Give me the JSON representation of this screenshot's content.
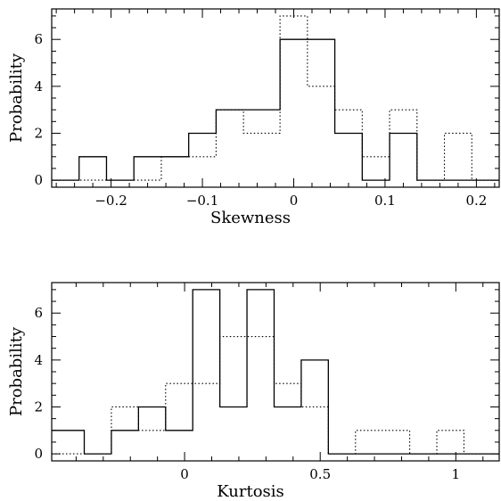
{
  "chart_data": [
    {
      "type": "histogram",
      "xlabel": "Skewness",
      "ylabel": "Probability",
      "xlim": [
        -0.265,
        0.225
      ],
      "ylim": [
        -0.3,
        7.3
      ],
      "x_tick_labels": [
        "−0.2",
        "−0.1",
        "0",
        "0.1",
        "0.2"
      ],
      "x_tick_values": [
        -0.2,
        -0.1,
        0,
        0.1,
        0.2
      ],
      "y_tick_labels": [
        "0",
        "2",
        "4",
        "6"
      ],
      "y_tick_values": [
        0,
        2,
        4,
        6
      ],
      "series": [
        {
          "style": "solid",
          "bin_edges": [
            -0.265,
            -0.235,
            -0.205,
            -0.175,
            -0.145,
            -0.115,
            -0.085,
            -0.055,
            -0.015,
            0.015,
            0.045,
            0.075,
            0.105,
            0.135,
            0.165,
            0.195,
            0.225
          ],
          "values": [
            0,
            1,
            0,
            1,
            1,
            2,
            3,
            3,
            6,
            6,
            2,
            0,
            2,
            0,
            0,
            0
          ]
        },
        {
          "style": "dotted",
          "bin_edges": [
            -0.265,
            -0.235,
            -0.205,
            -0.175,
            -0.145,
            -0.115,
            -0.085,
            -0.055,
            -0.015,
            0.015,
            0.045,
            0.075,
            0.105,
            0.135,
            0.165,
            0.195,
            0.225
          ],
          "values": [
            0,
            0,
            0,
            0,
            1,
            1,
            3,
            2,
            7,
            4,
            3,
            1,
            3,
            0,
            2,
            0
          ]
        }
      ]
    },
    {
      "type": "histogram",
      "xlabel": "Kurtosis",
      "ylabel": "Probability",
      "xlim": [
        -0.49,
        1.16
      ],
      "ylim": [
        -0.3,
        7.3
      ],
      "x_tick_labels": [
        "0",
        "0.5",
        "1"
      ],
      "x_tick_values": [
        0,
        0.5,
        1
      ],
      "y_tick_labels": [
        "0",
        "2",
        "4",
        "6"
      ],
      "y_tick_values": [
        0,
        2,
        4,
        6
      ],
      "series": [
        {
          "style": "solid",
          "bin_edges": [
            -0.49,
            -0.37,
            -0.27,
            -0.17,
            -0.07,
            0.03,
            0.13,
            0.23,
            0.33,
            0.43,
            0.53,
            0.63,
            0.73,
            0.83,
            0.93,
            1.03,
            1.16
          ],
          "values": [
            1,
            0,
            1,
            2,
            1,
            7,
            2,
            7,
            2,
            4,
            0,
            0,
            0,
            0,
            0,
            0
          ]
        },
        {
          "style": "dotted",
          "bin_edges": [
            -0.49,
            -0.37,
            -0.27,
            -0.17,
            -0.07,
            0.03,
            0.13,
            0.23,
            0.33,
            0.43,
            0.53,
            0.63,
            0.73,
            0.83,
            0.93,
            1.03,
            1.16
          ],
          "values": [
            0,
            0,
            2,
            1,
            3,
            3,
            5,
            5,
            3,
            2,
            0,
            1,
            1,
            0,
            1,
            0
          ]
        }
      ]
    }
  ]
}
